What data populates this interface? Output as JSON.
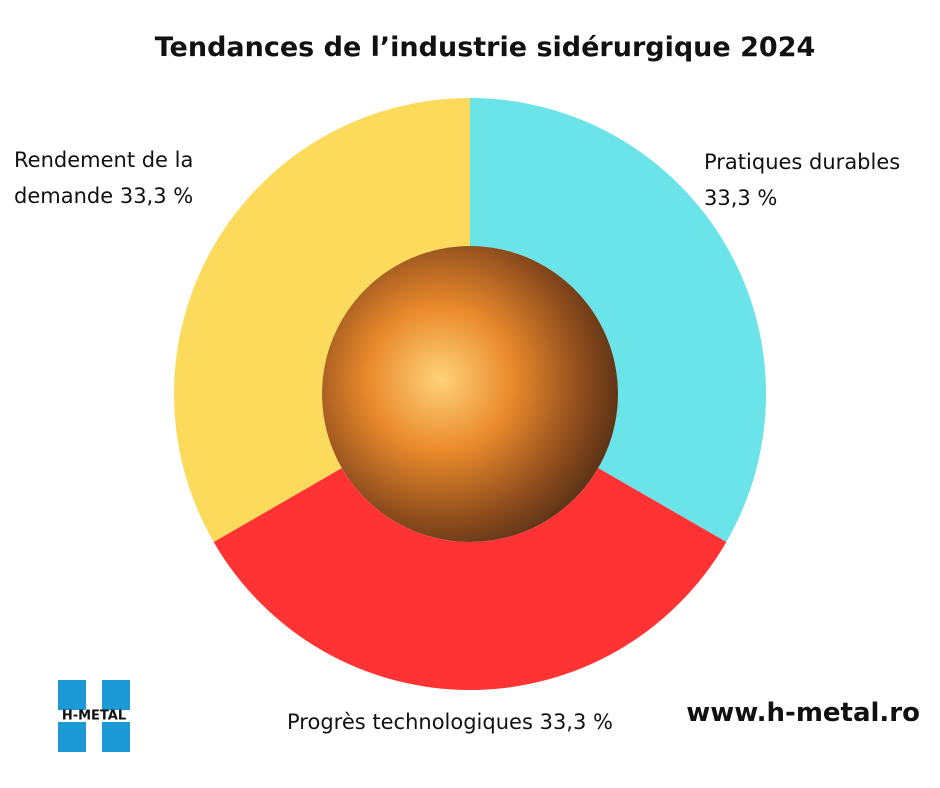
{
  "chart_data": {
    "type": "pie",
    "donut": true,
    "title": "Tendances de l’industrie sidérurgique 2024",
    "categories": [
      "Pratiques durables",
      "Progrès technologiques",
      "Rendement de la demande"
    ],
    "values": [
      33.3,
      33.3,
      33.3
    ],
    "value_labels": [
      "33,3 %",
      "33,3 %",
      "33,3 %"
    ],
    "colors": [
      "#6ae4e9",
      "#ff3333",
      "#fcdb5c"
    ]
  },
  "logo": "H-METAL",
  "website": "www.h-metal.ro"
}
